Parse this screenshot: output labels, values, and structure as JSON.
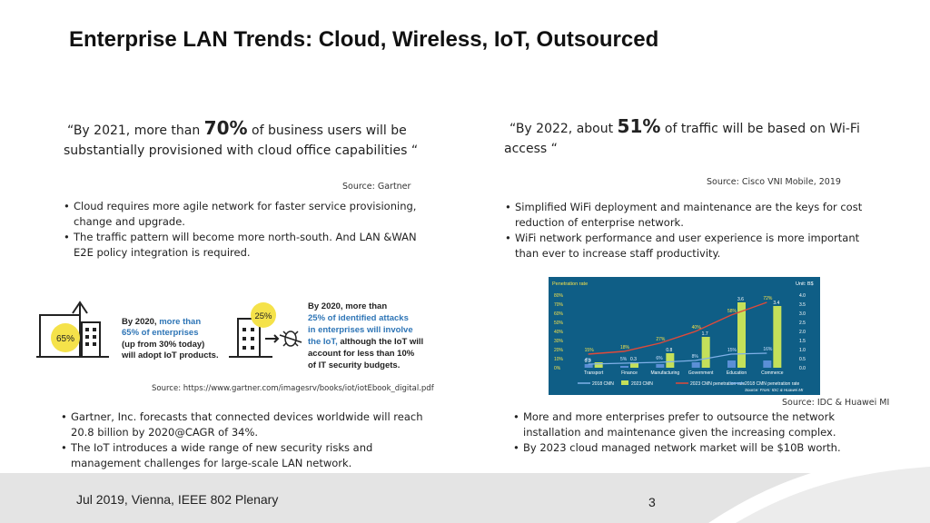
{
  "slide": {
    "title": "Enterprise LAN Trends: Cloud, Wireless, IoT, Outsourced",
    "footer": "Jul 2019, Vienna, IEEE 802 Plenary",
    "page_number": "3"
  },
  "left_top": {
    "quote_pre": "“By 2021, more than ",
    "quote_highlight": "70%",
    "quote_mid": " of business users will be",
    "quote_line2": "substantially provisioned with cloud office capabilities “",
    "source": "Source: Gartner",
    "bullets": [
      "Cloud requires more agile network for faster service provisioning, change and upgrade.",
      "The traffic pattern will become more north-south. And LAN &WAN E2E policy integration is required."
    ]
  },
  "right_top": {
    "quote_pre": "“By 2022, about ",
    "quote_highlight": "51%",
    "quote_mid": " of traffic will be based on Wi-Fi",
    "quote_line2": "access “",
    "source": "Source: Cisco VNI Mobile, 2019",
    "bullets": [
      "Simplified WiFi deployment and maintenance are the keys for cost reduction of enterprise network.",
      "WiFi network performance and user experience is more important than ever to increase staff productivity."
    ]
  },
  "iot_figure": {
    "left_badge": "65%",
    "left_text_a": "By 2020, ",
    "left_text_a_hl": "more than",
    "left_text_b": "65% of enterprises",
    "left_text_c": "(up from 30% today)",
    "left_text_d": "will adopt IoT products.",
    "right_badge": "25%",
    "right_text_a": "By 2020, more than",
    "right_text_b": "25% of identified attacks",
    "right_text_c": "in enterprises will involve",
    "right_text_d_hl": "the IoT, ",
    "right_text_d": "although the IoT will",
    "right_text_e": "account for less than 10%",
    "right_text_f": "of IT security budgets.",
    "source": "Source: https://www.gartner.com/imagesrv/books/iot/iotEbook_digital.pdf"
  },
  "left_bottom": {
    "bullets": [
      "Gartner, Inc. forecasts that connected devices worldwide will reach 20.8 billion by 2020@CAGR of 34%.",
      "The IoT introduces a wide range of new security risks and management challenges for large-scale LAN network."
    ]
  },
  "right_bottom": {
    "source": "Source: IDC & Huawei MI",
    "bullets": [
      "More and more enterprises prefer to outsource the network installation and maintenance given the increasing complex.",
      "By 2023 cloud managed network market will be $10B worth."
    ]
  },
  "chart_data": {
    "type": "bar",
    "title": "",
    "left_axis_label": "Penetration rate",
    "right_axis_label": "Unit: B$",
    "categories": [
      "Transport",
      "Finance",
      "Manufacturing",
      "Government",
      "Education",
      "Commerce"
    ],
    "series": [
      {
        "name": "2018 CMN",
        "values": [
          0.2,
          0.1,
          0.2,
          0.3,
          0.4,
          0.4
        ],
        "labels": [
          "0.2",
          "",
          "",
          "",
          "",
          ""
        ]
      },
      {
        "name": "2023 CMN",
        "values": [
          0.3,
          0.3,
          0.8,
          1.7,
          3.6,
          3.4
        ],
        "labels": [
          "",
          "0.3",
          "0.8",
          "1.7",
          "3.6",
          "3.4"
        ]
      },
      {
        "name": "2018 CMN penetration rate",
        "values": [
          4,
          5,
          6,
          8,
          15,
          16
        ],
        "labels": [
          "4%",
          "5%",
          "6%",
          "8%",
          "15%",
          "16%"
        ]
      },
      {
        "name": "2023 CMN penetration rate",
        "values": [
          15,
          18,
          27,
          40,
          58,
          72
        ],
        "labels": [
          "15%",
          "18%",
          "27%",
          "40%",
          "58%",
          "72%"
        ]
      }
    ],
    "left_ticks": [
      "80%",
      "70%",
      "60%",
      "50%",
      "40%",
      "30%",
      "20%",
      "10%",
      "0%"
    ],
    "right_ticks": [
      "4.0",
      "3.5",
      "3.0",
      "2.5",
      "2.0",
      "1.5",
      "1.0",
      "0.5",
      "0.0"
    ],
    "ylim_left": [
      0,
      80
    ],
    "ylim_right": [
      0,
      4
    ],
    "source_note": "Source: From: IDC & Huawei MI"
  }
}
